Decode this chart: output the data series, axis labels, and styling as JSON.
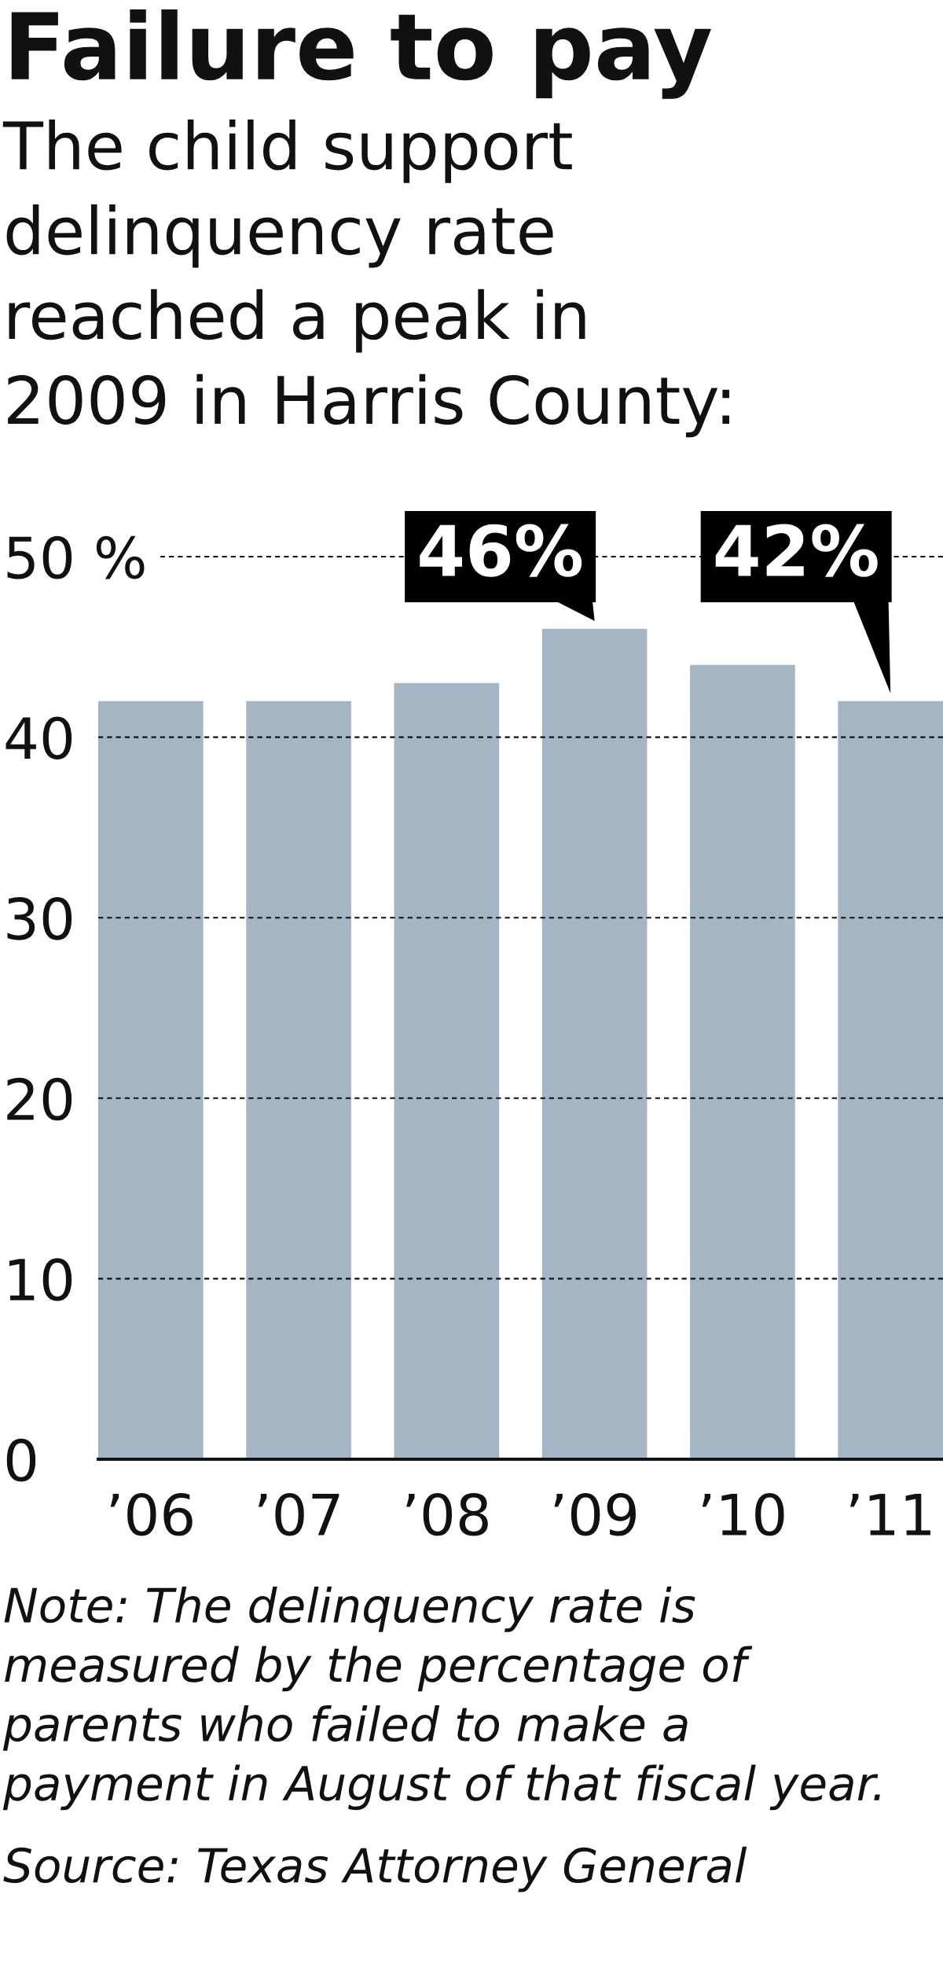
{
  "chart_data": {
    "type": "bar",
    "title": "Failure to pay",
    "subtitle": "The child support delinquency rate reached a peak in 2009 in Harris County:",
    "categories": [
      "’06",
      "’07",
      "’08",
      "’09",
      "’10",
      "’11"
    ],
    "values": [
      42,
      42,
      43,
      46,
      44,
      42
    ],
    "color": "#a4b6c3",
    "value_labels": [
      null,
      null,
      null,
      "46%",
      null,
      "42%"
    ],
    "ylim": [
      0,
      50
    ],
    "yticks": [
      0,
      10,
      20,
      30,
      40,
      {
        "value": 50,
        "label": "50 %"
      }
    ],
    "grid": "y",
    "annotations": [
      "Note: The delinquency rate is measured by the percentage of parents who failed to make a payment in August of that fiscal year.",
      "Source: Texas Attorney General"
    ]
  }
}
